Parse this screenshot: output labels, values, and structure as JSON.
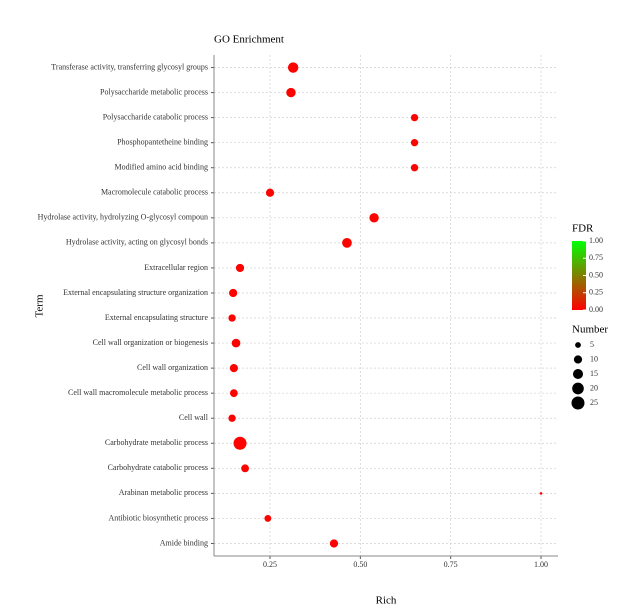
{
  "chart_data": {
    "type": "scatter",
    "title": "GO Enrichment",
    "x_label": "Rich",
    "y_label": "Term",
    "categories": [
      "Transferase activity, transferring glycosyl groups",
      "Polysaccharide metabolic process",
      "Polysaccharide catabolic process",
      "Phosphopantetheine binding",
      "Modified amino acid binding",
      "Macromolecule catabolic process",
      "Hydrolase activity, hydrolyzing O-glycosyl compoun",
      "Hydrolase activity, acting on glycosyl bonds",
      "Extracellular region",
      "External encapsulating structure organization",
      "External encapsulating structure",
      "Cell wall organization or biogenesis",
      "Cell wall organization",
      "Cell wall macromolecule metabolic process",
      "Cell wall",
      "Carbohydrate metabolic process",
      "Carbohydrate catabolic process",
      "Arabinan metabolic process",
      "Antibiotic biosynthetic process",
      "Amide binding"
    ],
    "x": [
      0.314,
      0.308,
      0.65,
      0.65,
      0.65,
      0.25,
      0.538,
      0.463,
      0.167,
      0.148,
      0.145,
      0.156,
      0.15,
      0.15,
      0.145,
      0.167,
      0.181,
      1.0,
      0.244,
      0.427
    ],
    "sizes": [
      16,
      13,
      8,
      8,
      8,
      10,
      13,
      14,
      10,
      10,
      8,
      11,
      10,
      9,
      8,
      25,
      9,
      1,
      7,
      10
    ],
    "fdr": [
      0.01,
      0.01,
      0.01,
      0.01,
      0.01,
      0.01,
      0.01,
      0.01,
      0.01,
      0.01,
      0.01,
      0.01,
      0.01,
      0.01,
      0.01,
      0.01,
      0.01,
      0.01,
      0.01,
      0.01
    ],
    "xlim": [
      0.095,
      1.047
    ],
    "xticks": [
      {
        "value": 0.25,
        "label": "0.25"
      },
      {
        "value": 0.5,
        "label": "0.50"
      },
      {
        "value": 0.75,
        "label": "0.75"
      },
      {
        "value": 1,
        "label": "1.00"
      }
    ],
    "grid": true,
    "color_legend": {
      "title": "FDR",
      "low_color": "#ff0000",
      "high_color": "#00ff00",
      "lim": [
        0,
        1
      ],
      "ticks": [
        {
          "value": 1,
          "label": "1.00"
        },
        {
          "value": 0.75,
          "label": "0.75"
        },
        {
          "value": 0.5,
          "label": "0.50"
        },
        {
          "value": 0.25,
          "label": "0.25"
        },
        {
          "value": 0,
          "label": "0.00"
        }
      ]
    },
    "size_legend": {
      "title": "Number",
      "values": [
        5,
        10,
        15,
        20,
        25
      ]
    }
  }
}
